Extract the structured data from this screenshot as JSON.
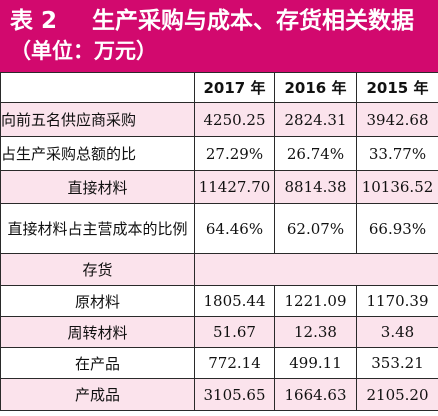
{
  "title": {
    "table_number": "表 2",
    "line1": "生产采购与成本、存货相关数据",
    "line2": "（单位：万元）"
  },
  "columns": [
    "",
    "2017 年",
    "2016 年",
    "2015 年"
  ],
  "rows": [
    {
      "label": "向前五名供应商采购",
      "values": [
        "4250.25",
        "2824.31",
        "3942.68"
      ]
    },
    {
      "label": "占生产采购总额的比",
      "values": [
        "27.29%",
        "26.74%",
        "33.77%"
      ]
    },
    {
      "label": "直接材料",
      "values": [
        "11427.70",
        "8814.38",
        "10136.52"
      ]
    },
    {
      "label": "直接材料占主营成本的比例",
      "values": [
        "64.46%",
        "62.07%",
        "66.93%"
      ]
    },
    {
      "label": "存货",
      "values": []
    },
    {
      "label": "原材料",
      "values": [
        "1805.44",
        "1221.09",
        "1170.39"
      ]
    },
    {
      "label": "周转材料",
      "values": [
        "51.67",
        "12.38",
        "3.48"
      ]
    },
    {
      "label": "在产品",
      "values": [
        "772.14",
        "499.11",
        "353.21"
      ]
    },
    {
      "label": "产成品",
      "values": [
        "3105.65",
        "1664.63",
        "2105.20"
      ]
    }
  ],
  "colors": {
    "title_bg": "#d2096e",
    "row_pink": "#fbe3ec",
    "border": "#2a2a2a"
  }
}
